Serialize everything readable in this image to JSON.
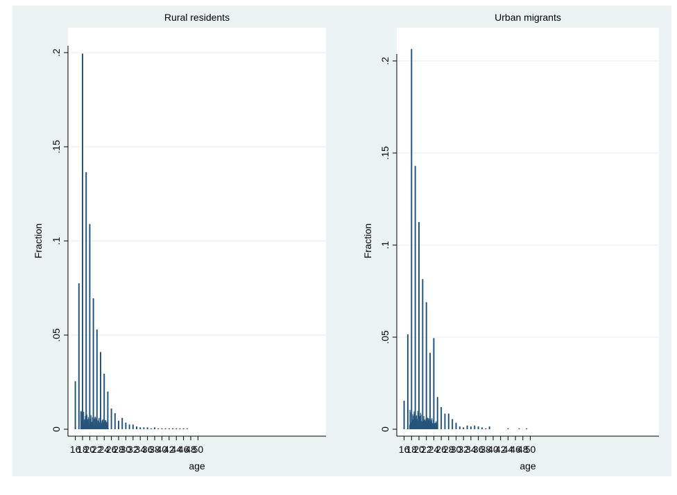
{
  "chart_data": [
    {
      "type": "bar",
      "title": "Rural residents",
      "xlabel": "age",
      "ylabel": "Fraction",
      "xlim": [
        15,
        51
      ],
      "ylim": [
        0,
        0.2
      ],
      "x_ticks": [
        "16",
        "18",
        "20",
        "22",
        "24",
        "26",
        "28",
        "30",
        "32",
        "34",
        "36",
        "38",
        "40",
        "42",
        "44",
        "46",
        "48",
        "50"
      ],
      "y_ticks": [
        "0",
        ".05",
        ".1",
        ".15",
        ".2"
      ],
      "grid": true,
      "bars_x": [
        16,
        17,
        18,
        19,
        20,
        21,
        22,
        23,
        24,
        25,
        26,
        27,
        28,
        29,
        30,
        31,
        32,
        33,
        34,
        35,
        36,
        37,
        38,
        39,
        40,
        41,
        42,
        43,
        44,
        45,
        46,
        47
      ],
      "bars_y": [
        0.0255,
        0.0775,
        0.1995,
        0.1365,
        0.109,
        0.0695,
        0.053,
        0.041,
        0.0295,
        0.02,
        0.011,
        0.0085,
        0.0045,
        0.006,
        0.0035,
        0.0025,
        0.0025,
        0.0015,
        0.001,
        0.001,
        0.001,
        0.0005,
        0.001,
        0.0005,
        0.0005,
        0.0005,
        0.0005,
        0.0005,
        0.0005,
        0.0005,
        0.0005,
        0.0005
      ],
      "cluster": {
        "from": 17.5,
        "to": 25.2,
        "max": 0.0105
      }
    },
    {
      "type": "bar",
      "title": "Urban migrants",
      "xlabel": "age",
      "ylabel": "Fraction",
      "xlim": [
        15,
        51
      ],
      "ylim": [
        0,
        0.2
      ],
      "x_ticks": [
        "16",
        "18",
        "20",
        "22",
        "24",
        "26",
        "28",
        "30",
        "32",
        "34",
        "36",
        "38",
        "40",
        "42",
        "44",
        "46",
        "48",
        "50"
      ],
      "y_ticks": [
        "0",
        ".05",
        ".1",
        ".15",
        ".2"
      ],
      "grid": true,
      "bars_x": [
        16,
        17,
        18,
        19,
        20,
        21,
        22,
        23,
        24,
        25,
        26,
        27,
        28,
        29,
        30,
        31,
        32,
        33,
        34,
        35,
        36,
        37,
        38,
        39,
        44,
        47,
        49
      ],
      "bars_y": [
        0.0155,
        0.0515,
        0.2065,
        0.143,
        0.1125,
        0.0815,
        0.069,
        0.0415,
        0.0495,
        0.0175,
        0.012,
        0.0085,
        0.0085,
        0.0055,
        0.0035,
        0.0015,
        0.001,
        0.002,
        0.0015,
        0.002,
        0.0015,
        0.001,
        0.0005,
        0.0015,
        0.0005,
        0.0005,
        0.0005
      ],
      "cluster": {
        "from": 17.5,
        "to": 24.8,
        "max": 0.0125
      }
    }
  ],
  "colors": {
    "bar": "#26557c",
    "outer": "#eaf2f3",
    "plot": "#ffffff",
    "grid": "#e6eef0"
  }
}
